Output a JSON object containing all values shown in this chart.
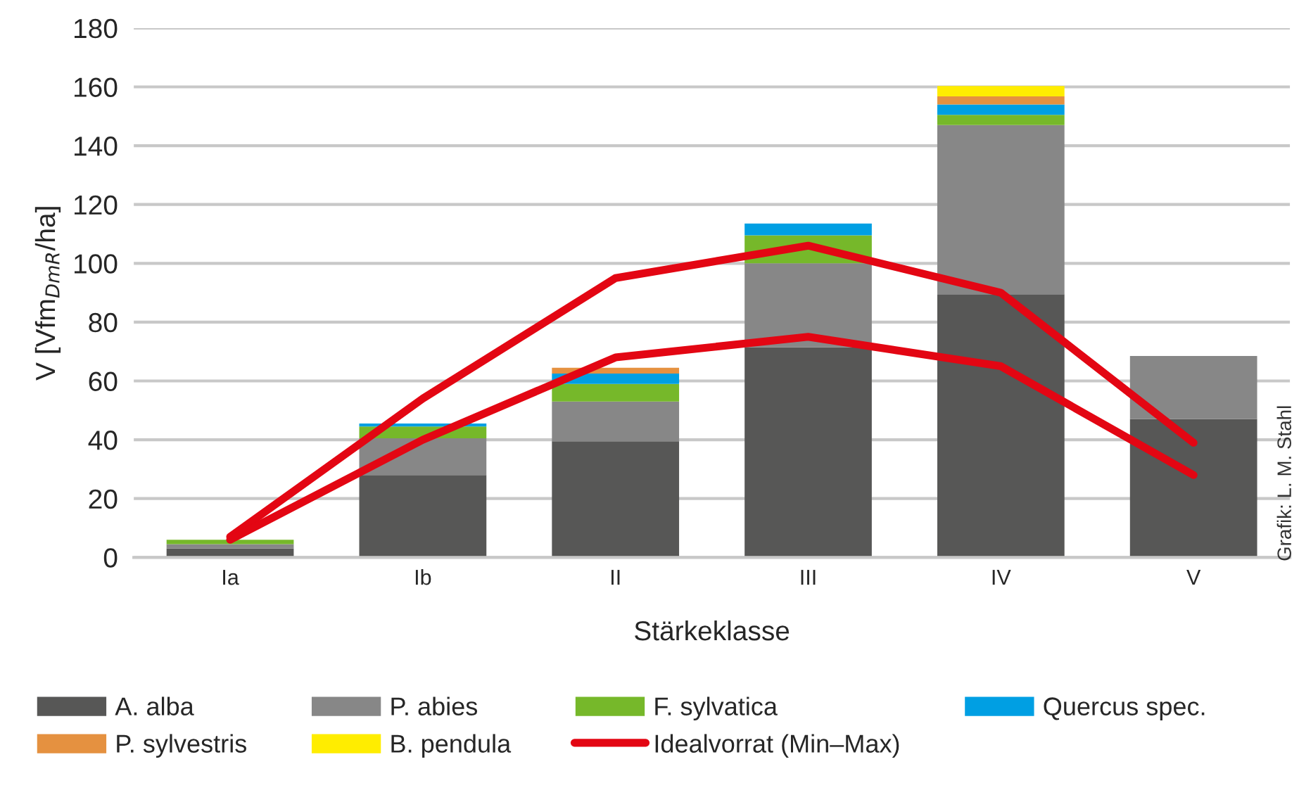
{
  "chart_data": {
    "type": "bar",
    "stacked": true,
    "xlabel": "Stärkeklasse",
    "ylabel": "V [Vfm$_{DmR}$/ha]",
    "categories": [
      "Ia",
      "Ib",
      "II",
      "III",
      "IV",
      "V"
    ],
    "series": [
      {
        "name": "A. alba",
        "color": "#575756",
        "values": [
          3,
          28,
          39.5,
          71.5,
          89.5,
          47
        ]
      },
      {
        "name": "P. abies",
        "color": "#878787",
        "values": [
          1.5,
          12.5,
          13.5,
          28.5,
          57.5,
          21.5
        ]
      },
      {
        "name": "F. sylvatica",
        "color": "#76b82a",
        "values": [
          1.5,
          4,
          6,
          9.5,
          3.5,
          null
        ]
      },
      {
        "name": "Quercus spec.",
        "color": "#009fe3",
        "values": [
          null,
          1,
          3.5,
          4,
          3.5,
          null
        ]
      },
      {
        "name": "P. sylvestris",
        "color": "#e59140",
        "values": [
          null,
          null,
          2,
          null,
          2.8,
          null
        ]
      },
      {
        "name": "B. pendula",
        "color": "#ffed00",
        "values": [
          null,
          null,
          null,
          null,
          3.5,
          null
        ]
      },
      {
        "name": "Idealvorrat (Min–Max)",
        "type": "line",
        "color": "#e30613",
        "values": [
          7,
          54,
          95,
          106,
          90,
          39
        ]
      },
      {
        "type": "line",
        "color": "#e30613",
        "values": [
          6,
          40,
          68,
          75,
          65,
          28
        ]
      }
    ],
    "ylim": [
      0,
      180
    ],
    "yticks": [
      0,
      20,
      40,
      60,
      80,
      100,
      120,
      140,
      160,
      180
    ],
    "grid": "y",
    "legend": "bottom",
    "annotations": [
      "Grafik: L. M. Stahl"
    ]
  }
}
